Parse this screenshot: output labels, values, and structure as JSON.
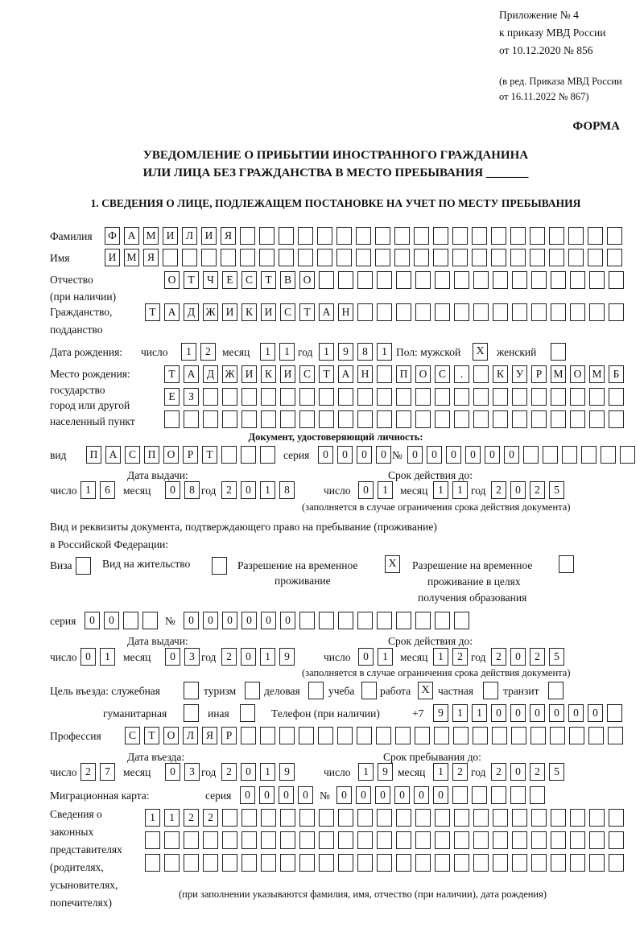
{
  "header": {
    "appendix": "Приложение № 4",
    "order": "к приказу МВД России",
    "order_date": "от 10.12.2020 № 856",
    "revision_1": "(в ред. Приказа МВД России",
    "revision_2": "от 16.11.2022 № 867)",
    "form_label": "ФОРМА",
    "title_1": "УВЕДОМЛЕНИЕ О ПРИБЫТИИ ИНОСТРАННОГО ГРАЖДАНИНА",
    "title_2": "ИЛИ ЛИЦА БЕЗ ГРАЖДАНСТВА В МЕСТО ПРЕБЫВАНИЯ _______",
    "section_1": "1. СВЕДЕНИЯ О ЛИЦЕ, ПОДЛЕЖАЩЕМ ПОСТАНОВКЕ НА УЧЕТ ПО МЕСТУ ПРЕБЫВАНИЯ"
  },
  "labels": {
    "surname": "Фамилия",
    "name": "Имя",
    "patronymic_1": "Отчество",
    "patronymic_2": "(при наличии)",
    "citizenship_1": "Гражданство,",
    "citizenship_2": "подданство",
    "birth_date": "Дата рождения:",
    "day": "число",
    "month": "месяц",
    "year": "год",
    "sex": "Пол: мужской",
    "female": "женский",
    "birth_place_1": "Место рождения:",
    "birth_place_2": "государство",
    "birth_place_3": "город или другой",
    "birth_place_4": "населенный пункт",
    "id_doc": "Документ, удостоверяющий личность:",
    "kind": "вид",
    "series": "серия",
    "number": "№",
    "issue_date": "Дата выдачи:",
    "valid_until": "Срок действия до:",
    "validity_note": "(заполняется в случае ограничения срока действия документа)",
    "stay_doc_1": "Вид и реквизиты документа, подтверждающего право на пребывание (проживание)",
    "stay_doc_2": "в Российской Федерации:",
    "visa": "Виза",
    "residence": "Вид на жительство",
    "trp_1": "Разрешение на временное",
    "trp_2": "проживание",
    "trp_edu_1": "Разрешение на временное",
    "trp_edu_2": "проживание в целях",
    "trp_edu_3": "получения образования",
    "purpose": "Цель въезда: служебная",
    "tourism": "туризм",
    "business": "деловая",
    "study": "учеба",
    "work": "работа",
    "private": "частная",
    "transit": "транзит",
    "humanitarian": "гуманитарная",
    "other": "иная",
    "phone": "Телефон (при наличии)",
    "phone_prefix": "+7",
    "profession": "Профессия",
    "entry_date": "Дата въезда:",
    "stay_until": "Срок пребывания до:",
    "migration_card": "Миграционная карта:",
    "reps_1": "Сведения о",
    "reps_2": "законных",
    "reps_3": "представителях",
    "reps_4": "(родителях,",
    "reps_5": "усыновителях,",
    "reps_6": "попечителях)",
    "reps_note": "(при заполнении указываются фамилия, имя, отчество (при наличии), дата рождения)"
  },
  "values": {
    "surname": "ФАМИЛИЯ",
    "name": "ИМЯ",
    "patronymic": "ОТЧЕСТВО",
    "citizenship": "ТАДЖИКИСТАН",
    "birth_day": "12",
    "birth_month": "11",
    "birth_year": "1981",
    "sex_male": true,
    "sex_female": false,
    "birth_place_1": "ТАДЖИКИСТАН ПОС. КУРМОМБ",
    "birth_place_2": "ЕЗ",
    "birth_place_3": "",
    "id_kind": "ПАСПОРТ",
    "id_series": "0000",
    "id_number": "000000",
    "id_issue_day": "16",
    "id_issue_month": "08",
    "id_issue_year": "2018",
    "id_valid_day": "01",
    "id_valid_month": "11",
    "id_valid_year": "2025",
    "visa": false,
    "residence_permit": false,
    "temporary_residence": true,
    "temporary_residence_edu": false,
    "stay_series": "00",
    "stay_number": "000000",
    "stay_issue_day": "01",
    "stay_issue_month": "03",
    "stay_issue_year": "2019",
    "stay_valid_day": "01",
    "stay_valid_month": "12",
    "stay_valid_year": "2025",
    "purpose_official": false,
    "purpose_tourism": false,
    "purpose_business": false,
    "purpose_study": false,
    "purpose_work": true,
    "purpose_private": false,
    "purpose_transit": false,
    "purpose_humanitarian": false,
    "purpose_other": false,
    "phone": "911000000",
    "profession": "СТОЛЯР",
    "entry_day": "27",
    "entry_month": "03",
    "entry_year": "2019",
    "stay_until_day": "19",
    "stay_until_month": "12",
    "stay_until_year": "2025",
    "mc_series": "0000",
    "mc_number": "000000",
    "reps_1": "1122",
    "reps_2": "",
    "reps_3": ""
  }
}
